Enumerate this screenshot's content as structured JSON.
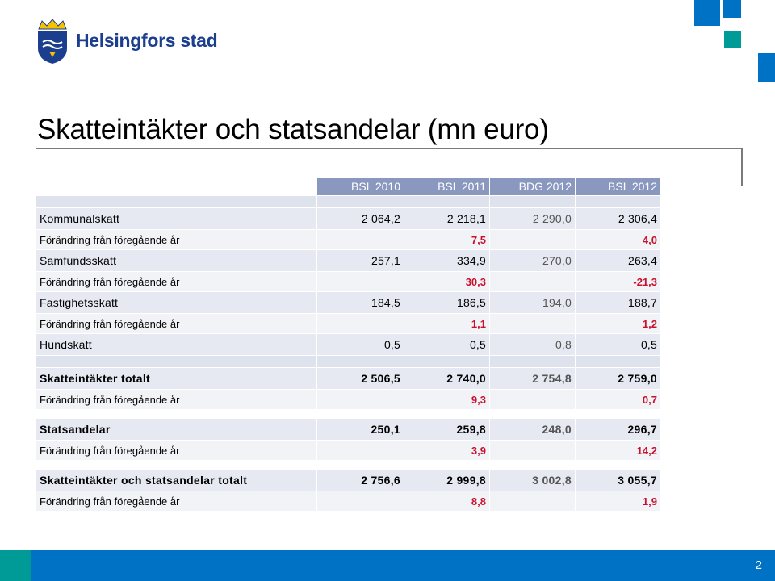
{
  "header": {
    "brand_name": "Helsingfors stad",
    "logo_icon": "helsinki-coat-of-arms-icon",
    "brand_color": "#1b3e8e",
    "accent_blue": "#0072c6",
    "accent_teal": "#009b97"
  },
  "slide": {
    "title": "Skatteintäkter och statsandelar (mn euro)",
    "page_number": "2"
  },
  "table": {
    "columns": [
      "BSL 2010",
      "BSL 2011",
      "BDG 2012",
      "BSL 2012"
    ],
    "rows": [
      {
        "label": "Kommunalskatt",
        "values": [
          "2 064,2",
          "2 218,1",
          "2 290,0",
          "2 306,4"
        ]
      },
      {
        "label": "Förändring från föregående år",
        "values": [
          "",
          "7,5",
          "",
          "4,0"
        ]
      },
      {
        "label": "Samfundsskatt",
        "values": [
          "257,1",
          "334,9",
          "270,0",
          "263,4"
        ]
      },
      {
        "label": "Förändring från föregående år",
        "values": [
          "",
          "30,3",
          "",
          "-21,3"
        ]
      },
      {
        "label": "Fastighetsskatt",
        "values": [
          "184,5",
          "186,5",
          "194,0",
          "188,7"
        ]
      },
      {
        "label": "Förändring från föregående år",
        "values": [
          "",
          "1,1",
          "",
          "1,2"
        ]
      },
      {
        "label": "Hundskatt",
        "values": [
          "0,5",
          "0,5",
          "0,8",
          "0,5"
        ]
      },
      {
        "label": "Skatteintäkter totalt",
        "values": [
          "2 506,5",
          "2 740,0",
          "2 754,8",
          "2 759,0"
        ]
      },
      {
        "label": "Förändring från föregående år",
        "values": [
          "",
          "9,3",
          "",
          "0,7"
        ]
      },
      {
        "label": "Statsandelar",
        "values": [
          "250,1",
          "259,8",
          "248,0",
          "296,7"
        ]
      },
      {
        "label": "Förändring från föregående år",
        "values": [
          "",
          "3,9",
          "",
          "14,2"
        ]
      },
      {
        "label": "Skatteintäkter och statsandelar totalt",
        "values": [
          "2 756,6",
          "2 999,8",
          "3 002,8",
          "3 055,7"
        ]
      },
      {
        "label": "Förändring från föregående år",
        "values": [
          "",
          "8,8",
          "",
          "1,9"
        ]
      }
    ]
  }
}
